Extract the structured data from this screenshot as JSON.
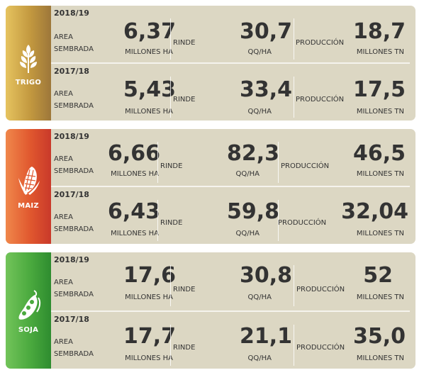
{
  "crops": [
    {
      "name": "TRIGO",
      "rows": [
        {
          "year": "2018/19",
          "area_label": "AREA SEMBRADA",
          "area_value": "6,37",
          "area_unit": "MILLONES HA",
          "rinde_label": "RINDE",
          "rinde_value": "30,7",
          "rinde_unit": "QQ/HA",
          "prod_label": "PRODUCCIÓN",
          "prod_value": "18,7",
          "prod_unit": "MILLONES TN"
        },
        {
          "year": "2017/18",
          "area_label": "AREA SEMBRADA",
          "area_value": "5,43",
          "area_unit": "MILLONES HA",
          "rinde_label": "RINDE",
          "rinde_value": "33,4",
          "rinde_unit": "QQ/HA",
          "prod_label": "PRODUCCIÓN",
          "prod_value": "17,5",
          "prod_unit": "MILLONES TN"
        }
      ]
    },
    {
      "name": "MAIZ",
      "rows": [
        {
          "year": "2018/19",
          "area_label": "AREA SEMBRADA",
          "area_value": "6,66",
          "area_unit": "MILLONES HA",
          "rinde_label": "RINDE",
          "rinde_value": "82,3",
          "rinde_unit": "QQ/HA",
          "prod_label": "PRODUCCIÓN",
          "prod_value": "46,5",
          "prod_unit": "MILLONES TN"
        },
        {
          "year": "2017/18",
          "area_label": "AREA SEMBRADA",
          "area_value": "6,43",
          "area_unit": "MILLONES HA",
          "rinde_label": "RINDE",
          "rinde_value": "59,8",
          "rinde_unit": "QQ/HA",
          "prod_label": "PRODUCCIÓN",
          "prod_value": "32,04",
          "prod_unit": "MILLONES TN"
        }
      ]
    },
    {
      "name": "SOJA",
      "rows": [
        {
          "year": "2018/19",
          "area_label": "AREA SEMBRADA",
          "area_value": "17,6",
          "area_unit": "MILLONES HA",
          "rinde_label": "RINDE",
          "rinde_value": "30,8",
          "rinde_unit": "QQ/HA",
          "prod_label": "PRODUCCIÓN",
          "prod_value": "52",
          "prod_unit": "MILLONES TN"
        },
        {
          "year": "2017/18",
          "area_label": "AREA SEMBRADA",
          "area_value": "17,7",
          "area_unit": "MILLONES HA",
          "rinde_label": "RINDE",
          "rinde_value": "21,1",
          "rinde_unit": "QQ/HA",
          "prod_label": "PRODUCCIÓN",
          "prod_value": "35,0",
          "prod_unit": "MILLONES TN"
        }
      ]
    }
  ],
  "icons": {
    "trigo": "wheat-icon",
    "maiz": "corn-icon",
    "soja": "soybean-pod-icon"
  },
  "colors": {
    "panel_bg": "#dcd7c3",
    "trigo": "#c2983f",
    "maiz": "#e0572e",
    "soja": "#4aa93e",
    "text": "#333333"
  }
}
